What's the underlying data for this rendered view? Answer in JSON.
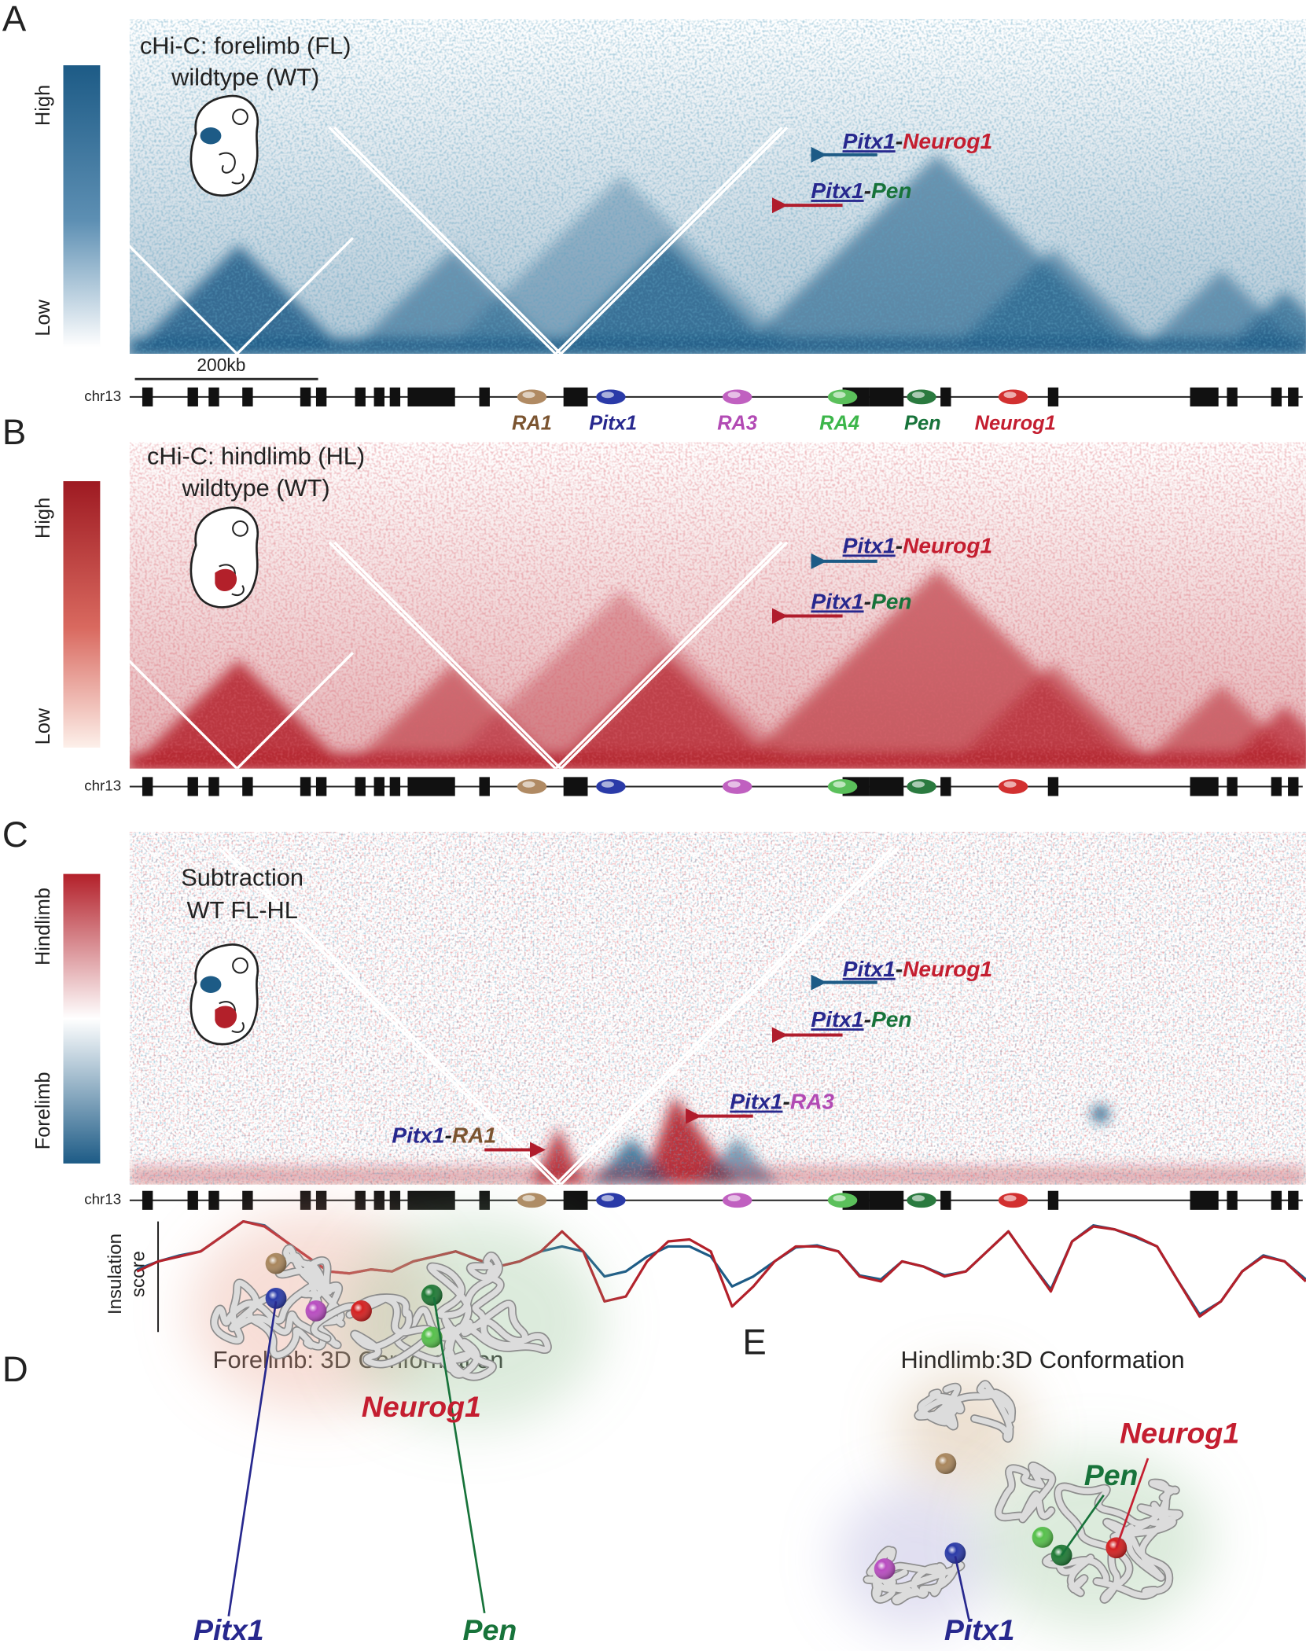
{
  "panel_a": {
    "letter": "A",
    "title": [
      "cHi-C: forelimb (FL)",
      "wildtype (WT)"
    ],
    "colorbar": [
      "High",
      "Low"
    ],
    "arrows": [
      [
        "Pitx1",
        "-",
        "Neurog1"
      ],
      [
        "Pitx1",
        "-",
        "Pen"
      ]
    ],
    "scalebar": "200kb"
  },
  "gene_track": {
    "chromosome": "chr13",
    "features": [
      "RA1",
      "Pitx1",
      "RA3",
      "RA4",
      "Pen",
      "Neurog1"
    ]
  },
  "panel_b": {
    "letter": "B",
    "title": [
      "cHi-C: hindlimb (HL)",
      "wildtype (WT)"
    ],
    "colorbar": [
      "High",
      "Low"
    ],
    "arrows": [
      [
        "Pitx1",
        "-",
        "Neurog1"
      ],
      [
        "Pitx1",
        "-",
        "Pen"
      ]
    ]
  },
  "panel_c": {
    "letter": "C",
    "title": [
      "Subtraction",
      "WT FL-HL"
    ],
    "colorbar": [
      "Hindlimb",
      "Forelimb"
    ],
    "arrows": [
      [
        "Pitx1",
        "-",
        "Neurog1"
      ],
      [
        "Pitx1",
        "-",
        "Pen"
      ],
      [
        "Pitx1",
        "-",
        "RA3"
      ],
      [
        "Pitx1",
        "-",
        "RA1"
      ]
    ]
  },
  "insulation": {
    "label": [
      "Insulation",
      "score"
    ],
    "series": [
      {
        "color": "#1d5b86",
        "values": [
          0.52,
          0.6,
          0.66,
          0.7,
          0.85,
          1.0,
          0.96,
          0.8,
          0.65,
          0.5,
          0.48,
          0.52,
          0.5,
          0.6,
          0.65,
          0.7,
          0.62,
          0.55,
          0.6,
          0.7,
          0.75,
          0.7,
          0.45,
          0.5,
          0.65,
          0.75,
          0.75,
          0.65,
          0.35,
          0.45,
          0.6,
          0.74,
          0.76,
          0.7,
          0.46,
          0.42,
          0.6,
          0.55,
          0.46,
          0.5,
          0.7,
          0.9,
          0.6,
          0.32,
          0.8,
          0.96,
          0.92,
          0.84,
          0.75,
          0.4,
          0.07,
          0.2,
          0.5,
          0.66,
          0.6,
          0.42
        ]
      },
      {
        "color": "#b3202a",
        "values": [
          0.5,
          0.6,
          0.65,
          0.7,
          0.85,
          1.0,
          0.95,
          0.8,
          0.65,
          0.5,
          0.48,
          0.52,
          0.5,
          0.6,
          0.65,
          0.7,
          0.62,
          0.55,
          0.6,
          0.7,
          0.9,
          0.7,
          0.2,
          0.25,
          0.6,
          0.8,
          0.82,
          0.7,
          0.15,
          0.35,
          0.6,
          0.75,
          0.75,
          0.7,
          0.45,
          0.4,
          0.6,
          0.55,
          0.45,
          0.5,
          0.7,
          0.9,
          0.6,
          0.3,
          0.8,
          0.95,
          0.92,
          0.85,
          0.75,
          0.4,
          0.05,
          0.2,
          0.5,
          0.65,
          0.6,
          0.4
        ]
      }
    ]
  },
  "panel_d": {
    "letter": "D",
    "title": "Forelimb: 3D Conformation",
    "labels": [
      "Neurog1",
      "Pitx1",
      "Pen"
    ]
  },
  "panel_e": {
    "letter": "E",
    "title": "Hindlimb:3D Conformation",
    "labels": [
      "Neurog1",
      "Pen",
      "Pitx1"
    ]
  }
}
